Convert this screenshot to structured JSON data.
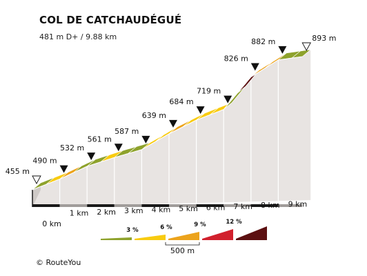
{
  "title": "COL DE CATCHAUDÉGUÉ",
  "subtitle": "481 m D+ / 9.88 km",
  "copyright": "©  RouteYou",
  "colors": {
    "grade_0_3": "#8ea22c",
    "grade_3_6": "#f8cb10",
    "grade_6_9": "#eca31c",
    "grade_9_12": "#d1202d",
    "grade_12_plus": "#5c1011",
    "wall": "#e8e4e2",
    "wall_shadow": "#a09c9a",
    "base_dark": "#1a1a1a"
  },
  "chart_data": {
    "type": "area",
    "title": "COL DE CATCHAUDÉGUÉ",
    "subtitle": "481 m D+ / 9.88 km",
    "xlabel": "",
    "ylabel": "",
    "x_unit": "km",
    "total_distance_km": 9.88,
    "elevation_gain_m": 481,
    "km_ticks": [
      {
        "km": 0,
        "label": "0 km"
      },
      {
        "km": 1,
        "label": "1 km"
      },
      {
        "km": 2,
        "label": "2 km"
      },
      {
        "km": 3,
        "label": "3 km"
      },
      {
        "km": 4,
        "label": "4 km"
      },
      {
        "km": 5,
        "label": "5 km"
      },
      {
        "km": 6,
        "label": "6 km"
      },
      {
        "km": 7,
        "label": "7 km"
      },
      {
        "km": 8,
        "label": "8 km"
      },
      {
        "km": 9,
        "label": "9 km"
      }
    ],
    "altitude_markers": [
      {
        "km": 0,
        "elevation_m": 455,
        "label": "455 m",
        "kind": "start"
      },
      {
        "km": 1,
        "elevation_m": 490,
        "label": "490 m",
        "kind": "km"
      },
      {
        "km": 2,
        "elevation_m": 532,
        "label": "532 m",
        "kind": "km"
      },
      {
        "km": 3,
        "elevation_m": 561,
        "label": "561 m",
        "kind": "km"
      },
      {
        "km": 4,
        "elevation_m": 587,
        "label": "587 m",
        "kind": "km"
      },
      {
        "km": 5,
        "elevation_m": 639,
        "label": "639 m",
        "kind": "km"
      },
      {
        "km": 6,
        "elevation_m": 684,
        "label": "684 m",
        "kind": "km"
      },
      {
        "km": 7,
        "elevation_m": 719,
        "label": "719 m",
        "kind": "km"
      },
      {
        "km": 8,
        "elevation_m": 826,
        "label": "826 m",
        "kind": "km"
      },
      {
        "km": 9,
        "elevation_m": 882,
        "label": "882 m",
        "kind": "km"
      },
      {
        "km": 9.88,
        "elevation_m": 893,
        "label": "893 m",
        "kind": "finish"
      }
    ],
    "segments": [
      {
        "km_start": 0.0,
        "km_end": 0.5,
        "grade": "0-3"
      },
      {
        "km_start": 0.5,
        "km_end": 1.0,
        "grade": "3-6"
      },
      {
        "km_start": 1.0,
        "km_end": 1.5,
        "grade": "6-9"
      },
      {
        "km_start": 1.5,
        "km_end": 2.0,
        "grade": "0-3"
      },
      {
        "km_start": 2.0,
        "km_end": 2.5,
        "grade": "0-3"
      },
      {
        "km_start": 2.5,
        "km_end": 3.0,
        "grade": "3-6"
      },
      {
        "km_start": 3.0,
        "km_end": 3.5,
        "grade": "0-3"
      },
      {
        "km_start": 3.5,
        "km_end": 4.0,
        "grade": "0-3"
      },
      {
        "km_start": 4.0,
        "km_end": 4.5,
        "grade": "3-6"
      },
      {
        "km_start": 4.5,
        "km_end": 5.0,
        "grade": "3-6"
      },
      {
        "km_start": 5.0,
        "km_end": 5.5,
        "grade": "6-9"
      },
      {
        "km_start": 5.5,
        "km_end": 6.0,
        "grade": "3-6"
      },
      {
        "km_start": 6.0,
        "km_end": 6.5,
        "grade": "3-6"
      },
      {
        "km_start": 6.5,
        "km_end": 7.0,
        "grade": "3-6"
      },
      {
        "km_start": 7.0,
        "km_end": 7.5,
        "grade": "0-3"
      },
      {
        "km_start": 7.5,
        "km_end": 8.0,
        "grade": "12+"
      },
      {
        "km_start": 8.0,
        "km_end": 8.5,
        "grade": "6-9"
      },
      {
        "km_start": 8.5,
        "km_end": 9.0,
        "grade": "6-9"
      },
      {
        "km_start": 9.0,
        "km_end": 9.5,
        "grade": "0-3"
      },
      {
        "km_start": 9.5,
        "km_end": 9.88,
        "grade": "0-3"
      }
    ],
    "legend": {
      "placement": "bottom-center",
      "scale_label": "500 m",
      "items": [
        {
          "grade": "0-3",
          "color_key": "grade_0_3",
          "label": ""
        },
        {
          "grade": "3-6",
          "color_key": "grade_3_6",
          "label": "3 %"
        },
        {
          "grade": "6-9",
          "color_key": "grade_6_9",
          "label": "6 %"
        },
        {
          "grade": "9-12",
          "color_key": "grade_9_12",
          "label": "9 %"
        },
        {
          "grade": "12+",
          "color_key": "grade_12_plus",
          "label": "12 %"
        }
      ]
    }
  }
}
